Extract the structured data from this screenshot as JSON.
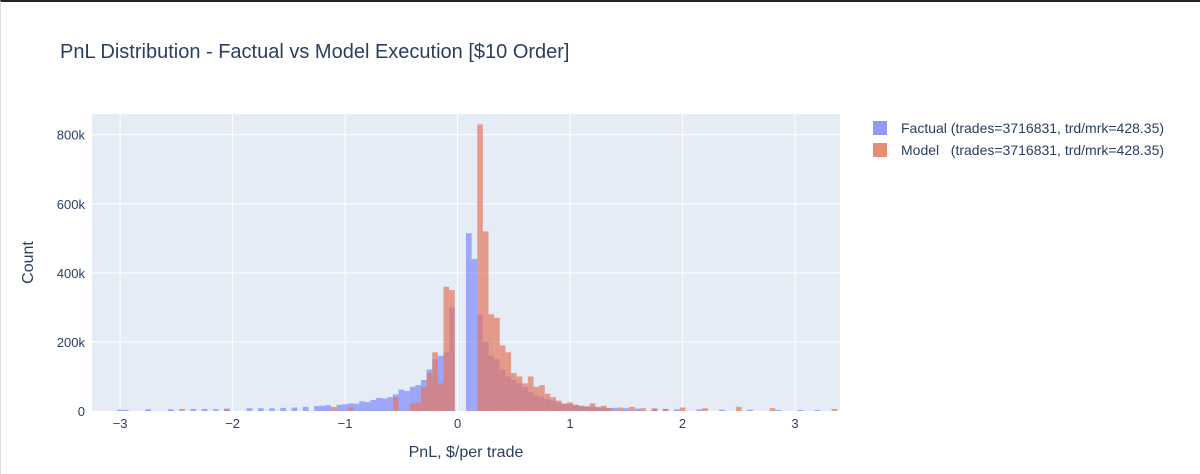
{
  "chart_data": {
    "type": "bar",
    "title": "PnL Distribution - Factual vs Model Execution [$10 Order]",
    "xlabel": "PnL, $/per trade",
    "ylabel": "Count",
    "xlim": [
      -3.25,
      3.4
    ],
    "ylim": [
      0,
      860000
    ],
    "x_ticks": [
      -3,
      -2,
      -1,
      0,
      1,
      2,
      3
    ],
    "x_tick_labels": [
      "−3",
      "−2",
      "−1",
      "0",
      "1",
      "2",
      "3"
    ],
    "y_ticks": [
      0,
      200000,
      400000,
      600000,
      800000
    ],
    "y_tick_labels": [
      "0",
      "200k",
      "400k",
      "600k",
      "800k"
    ],
    "bin_width": 0.05,
    "grid": true,
    "legend_position": "top-right",
    "barmode": "overlay",
    "series": [
      {
        "name": "Factual (trades=3716831, trd/mrk=428.35)",
        "color": "#636efa",
        "opacity": 0.55,
        "x": [
          -3.0,
          -2.95,
          -2.75,
          -2.55,
          -2.35,
          -2.25,
          -2.15,
          -2.05,
          -1.85,
          -1.75,
          -1.65,
          -1.55,
          -1.45,
          -1.35,
          -1.25,
          -1.2,
          -1.15,
          -1.05,
          -1.0,
          -0.95,
          -0.9,
          -0.85,
          -0.8,
          -0.75,
          -0.7,
          -0.65,
          -0.6,
          -0.55,
          -0.5,
          -0.45,
          -0.4,
          -0.35,
          -0.3,
          -0.25,
          -0.2,
          -0.15,
          -0.1,
          -0.05,
          0.1,
          0.15,
          0.2,
          0.25,
          0.3,
          0.35,
          0.4,
          0.45,
          0.5,
          0.55,
          0.6,
          0.65,
          0.7,
          0.75,
          0.8,
          0.85,
          0.9,
          0.95,
          1.0,
          1.05,
          1.1,
          1.15,
          1.2,
          1.25,
          1.3,
          1.35,
          1.4,
          1.5,
          1.6,
          1.75,
          1.85,
          1.95,
          2.15,
          2.35,
          2.6,
          2.85,
          3.05,
          3.2
        ],
        "values": [
          4000,
          3000,
          5000,
          5000,
          6000,
          6000,
          5000,
          7000,
          8000,
          8000,
          8000,
          9000,
          10000,
          12000,
          14000,
          15000,
          17000,
          18000,
          20000,
          22000,
          21000,
          28000,
          26000,
          32000,
          38000,
          36000,
          40000,
          48000,
          62000,
          58000,
          70000,
          75000,
          90000,
          120000,
          150000,
          160000,
          170000,
          300000,
          515000,
          440000,
          280000,
          200000,
          160000,
          150000,
          120000,
          100000,
          90000,
          80000,
          70000,
          55000,
          45000,
          40000,
          35000,
          30000,
          25000,
          22000,
          20000,
          18000,
          15000,
          14000,
          12000,
          12000,
          10000,
          9000,
          9000,
          8000,
          7000,
          6000,
          6000,
          5000,
          5000,
          4000,
          4000,
          3000,
          3000,
          3000
        ]
      },
      {
        "name": "Model   (trades=3716831, trd/mrk=428.35)",
        "color": "#e4775c",
        "opacity": 0.7,
        "x": [
          -2.45,
          -2.05,
          -1.1,
          -0.95,
          -0.55,
          -0.4,
          -0.35,
          -0.3,
          -0.25,
          -0.2,
          -0.15,
          -0.1,
          -0.05,
          0.2,
          0.25,
          0.3,
          0.35,
          0.4,
          0.45,
          0.5,
          0.55,
          0.6,
          0.65,
          0.7,
          0.75,
          0.8,
          0.85,
          0.9,
          0.95,
          1.0,
          1.05,
          1.1,
          1.15,
          1.2,
          1.25,
          1.3,
          1.35,
          1.45,
          1.55,
          1.65,
          1.75,
          1.85,
          2.0,
          2.2,
          2.5,
          2.8,
          3.35
        ],
        "values": [
          6000,
          5000,
          12000,
          10000,
          40000,
          22000,
          25000,
          70000,
          110000,
          170000,
          80000,
          360000,
          350000,
          830000,
          520000,
          280000,
          270000,
          190000,
          170000,
          110000,
          100000,
          80000,
          100000,
          70000,
          75000,
          50000,
          40000,
          30000,
          20000,
          25000,
          18000,
          15000,
          12000,
          22000,
          10000,
          15000,
          8000,
          10000,
          12000,
          8000,
          8000,
          6000,
          10000,
          8000,
          12000,
          8000,
          6000
        ]
      }
    ]
  }
}
